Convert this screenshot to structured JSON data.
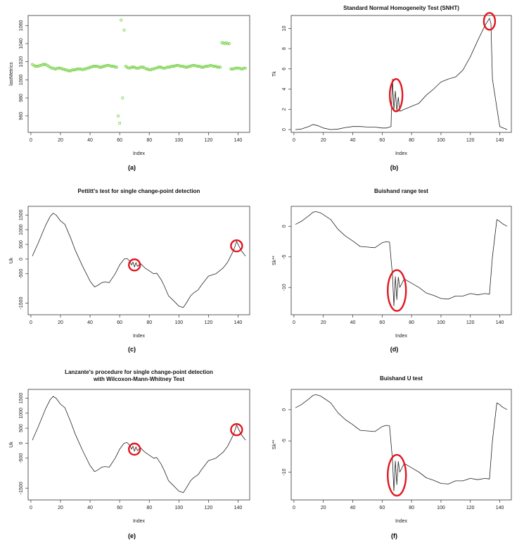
{
  "chart_data": [
    {
      "panel": "a",
      "type": "scatter",
      "caption": "(a)",
      "title": "",
      "xlabel": "Index",
      "ylabel": "lastMetrics",
      "xlim": [
        1,
        145
      ],
      "ylim": [
        945,
        1068
      ],
      "xticks": [
        0,
        20,
        40,
        60,
        80,
        100,
        120,
        140
      ],
      "yticks": [
        960,
        980,
        1000,
        1020,
        1040,
        1060
      ],
      "point_color": "#66cc33",
      "series": [
        {
          "x": [
            1,
            2,
            3,
            4,
            5,
            6,
            7,
            8,
            9,
            10,
            11,
            12,
            13,
            14,
            15,
            16,
            17,
            18,
            19,
            20,
            21,
            22,
            23,
            24,
            25,
            26,
            27,
            28,
            29,
            30,
            31,
            32,
            33,
            34,
            35,
            36,
            37,
            38,
            39,
            40,
            41,
            42,
            43,
            44,
            45,
            46,
            47,
            48,
            49,
            50,
            51,
            52,
            53,
            54,
            55,
            56,
            57,
            58,
            59,
            60,
            61,
            62,
            63,
            64,
            65,
            66,
            67,
            68,
            69,
            70,
            71,
            72,
            73,
            74,
            75,
            76,
            77,
            78,
            79,
            80,
            81,
            82,
            83,
            84,
            85,
            86,
            87,
            88,
            89,
            90,
            91,
            92,
            93,
            94,
            95,
            96,
            97,
            98,
            99,
            100,
            101,
            102,
            103,
            104,
            105,
            106,
            107,
            108,
            109,
            110,
            111,
            112,
            113,
            114,
            115,
            116,
            117,
            118,
            119,
            120,
            121,
            122,
            123,
            124,
            125,
            126,
            127,
            128,
            129,
            130,
            131,
            132,
            133,
            134,
            135,
            136,
            137,
            138,
            139,
            140,
            141,
            142,
            143,
            144,
            145
          ],
          "y": [
            1017,
            1016,
            1015,
            1015,
            1015,
            1016,
            1016,
            1017,
            1017,
            1017,
            1016,
            1015,
            1014,
            1013,
            1013,
            1012,
            1012,
            1013,
            1013,
            1013,
            1012,
            1012,
            1011,
            1011,
            1010,
            1010,
            1010,
            1011,
            1011,
            1011,
            1012,
            1012,
            1012,
            1012,
            1011,
            1012,
            1012,
            1013,
            1013,
            1014,
            1014,
            1015,
            1015,
            1015,
            1015,
            1014,
            1014,
            1014,
            1015,
            1015,
            1016,
            1016,
            1016,
            1015,
            1015,
            1015,
            1014,
            1014,
            960,
            952,
            1066,
            980,
            1055,
            1015,
            1014,
            1013,
            1013,
            1014,
            1014,
            1014,
            1013,
            1013,
            1013,
            1014,
            1014,
            1014,
            1013,
            1012,
            1012,
            1011,
            1011,
            1012,
            1012,
            1013,
            1013,
            1014,
            1014,
            1014,
            1013,
            1013,
            1013,
            1014,
            1014,
            1014,
            1015,
            1015,
            1015,
            1016,
            1016,
            1016,
            1015,
            1015,
            1015,
            1014,
            1014,
            1014,
            1015,
            1015,
            1016,
            1016,
            1016,
            1015,
            1015,
            1015,
            1014,
            1014,
            1014,
            1015,
            1015,
            1015,
            1016,
            1016,
            1015,
            1015,
            1015,
            1014,
            1014,
            1014,
            1041,
            1041,
            1040,
            1041,
            1040,
            1040,
            1012,
            1012,
            1012,
            1013,
            1013,
            1013,
            1013,
            1012,
            1012,
            1013,
            1013
          ]
        }
      ]
    },
    {
      "panel": "b",
      "type": "line",
      "caption": "(b)",
      "title": "Standard Normal Homogeneity Test (SNHT)",
      "xlabel": "Index",
      "ylabel": "Tk",
      "xlim": [
        1,
        145
      ],
      "ylim": [
        0,
        11
      ],
      "xticks": [
        0,
        20,
        40,
        60,
        80,
        100,
        120,
        140
      ],
      "yticks": [
        0,
        2,
        4,
        6,
        8,
        10
      ],
      "series": [
        {
          "x": [
            1,
            5,
            10,
            13,
            16,
            20,
            25,
            30,
            35,
            40,
            45,
            50,
            55,
            60,
            63,
            66,
            67,
            68,
            69,
            70,
            71,
            72,
            75,
            80,
            85,
            90,
            95,
            100,
            105,
            110,
            115,
            120,
            125,
            130,
            133,
            134,
            135,
            140,
            145
          ],
          "y": [
            0,
            0.05,
            0.3,
            0.5,
            0.4,
            0.15,
            0,
            0.05,
            0.2,
            0.3,
            0.3,
            0.25,
            0.25,
            0.15,
            0.15,
            0.3,
            5.0,
            2.0,
            3.8,
            1.9,
            3.2,
            1.8,
            2.0,
            2.3,
            2.6,
            3.4,
            4.0,
            4.7,
            5.0,
            5.2,
            5.9,
            7.2,
            8.8,
            10.3,
            11.0,
            10.5,
            5.0,
            0.3,
            0
          ]
        }
      ],
      "highlights": [
        {
          "x": 69.5,
          "y": 3.4
        },
        {
          "x": 133,
          "y": 10.7
        }
      ]
    },
    {
      "panel": "c",
      "type": "line",
      "caption": "(c)",
      "title": "Pettitt's test for single change-point detection",
      "xlabel": "Index",
      "ylabel": "Uk",
      "xlim": [
        1,
        145
      ],
      "ylim": [
        -1800,
        1700
      ],
      "xticks": [
        0,
        20,
        40,
        60,
        80,
        100,
        120,
        140
      ],
      "yticks": [
        -1500,
        -500,
        0,
        500,
        1000,
        1500
      ],
      "series": [
        {
          "x": [
            1,
            5,
            10,
            13,
            15,
            17,
            20,
            23,
            27,
            30,
            35,
            40,
            43,
            45,
            48,
            50,
            53,
            57,
            60,
            63,
            65,
            67,
            68,
            69,
            70,
            71,
            72,
            74,
            77,
            80,
            83,
            85,
            88,
            90,
            93,
            95,
            100,
            103,
            105,
            108,
            110,
            113,
            115,
            120,
            125,
            130,
            133,
            135,
            137,
            139,
            140,
            142,
            145
          ],
          "y": [
            100,
            550,
            1150,
            1450,
            1560,
            1500,
            1300,
            1180,
            700,
            300,
            -250,
            -750,
            -950,
            -900,
            -800,
            -780,
            -800,
            -500,
            -200,
            0,
            20,
            -80,
            -200,
            -100,
            -270,
            -120,
            -250,
            -150,
            -300,
            -400,
            -500,
            -480,
            -700,
            -900,
            -1250,
            -1350,
            -1600,
            -1650,
            -1500,
            -1250,
            -1150,
            -1050,
            -900,
            -580,
            -500,
            -300,
            -100,
            100,
            300,
            600,
            500,
            300,
            100
          ]
        }
      ],
      "highlights": [
        {
          "x": 70,
          "y": -200
        },
        {
          "x": 139,
          "y": 450
        }
      ]
    },
    {
      "panel": "d",
      "type": "line",
      "caption": "(d)",
      "title": "Buishand range test",
      "xlabel": "Index",
      "ylabel": "Sk**",
      "xlim": [
        1,
        145
      ],
      "ylim": [
        -14,
        2.8
      ],
      "xticks": [
        0,
        20,
        40,
        60,
        80,
        100,
        120,
        140
      ],
      "yticks": [
        -10,
        -5,
        0
      ],
      "series": [
        {
          "x": [
            1,
            5,
            10,
            13,
            15,
            18,
            20,
            25,
            30,
            35,
            40,
            45,
            50,
            55,
            60,
            63,
            65,
            67,
            68,
            69,
            70,
            71,
            72,
            75,
            80,
            85,
            90,
            95,
            100,
            105,
            110,
            115,
            120,
            125,
            130,
            133,
            135,
            138,
            140,
            142,
            145
          ],
          "y": [
            0.3,
            0.8,
            1.7,
            2.3,
            2.4,
            2.2,
            1.9,
            1.1,
            -0.5,
            -1.6,
            -2.4,
            -3.3,
            -3.4,
            -3.5,
            -2.7,
            -2.5,
            -2.6,
            -8.0,
            -13.0,
            -8.2,
            -12.0,
            -8.3,
            -10.0,
            -8.6,
            -9.3,
            -10.0,
            -10.9,
            -11.3,
            -11.8,
            -11.9,
            -11.4,
            -11.4,
            -11.0,
            -11.2,
            -11.0,
            -11.1,
            -5.0,
            1.1,
            0.8,
            0.4,
            0
          ]
        }
      ],
      "highlights": [
        {
          "x": 70,
          "y": -10.5
        }
      ]
    },
    {
      "panel": "e",
      "type": "line",
      "caption": "(e)",
      "title": "Lanzante's procedure for single change-point detection\nwith Wilcoxon-Mann-Whitney Test",
      "xlabel": "Index",
      "ylabel": "Uk",
      "xlim": [
        1,
        145
      ],
      "ylim": [
        -1800,
        1700
      ],
      "xticks": [
        0,
        20,
        40,
        60,
        80,
        100,
        120,
        140
      ],
      "yticks": [
        -1500,
        -500,
        0,
        500,
        1000,
        1500
      ],
      "series": [
        {
          "x": [
            1,
            5,
            10,
            13,
            15,
            17,
            20,
            23,
            27,
            30,
            35,
            40,
            43,
            45,
            48,
            50,
            53,
            57,
            60,
            63,
            65,
            67,
            68,
            69,
            70,
            71,
            72,
            74,
            77,
            80,
            83,
            85,
            88,
            90,
            93,
            95,
            100,
            103,
            105,
            108,
            110,
            113,
            115,
            120,
            125,
            130,
            133,
            135,
            137,
            139,
            140,
            142,
            145
          ],
          "y": [
            100,
            550,
            1150,
            1450,
            1560,
            1500,
            1300,
            1180,
            700,
            300,
            -250,
            -750,
            -950,
            -900,
            -800,
            -780,
            -800,
            -500,
            -200,
            0,
            20,
            -80,
            -200,
            -100,
            -270,
            -120,
            -250,
            -150,
            -300,
            -400,
            -500,
            -480,
            -700,
            -900,
            -1250,
            -1350,
            -1600,
            -1650,
            -1500,
            -1250,
            -1150,
            -1050,
            -900,
            -580,
            -500,
            -300,
            -100,
            100,
            300,
            600,
            500,
            300,
            100
          ]
        }
      ],
      "highlights": [
        {
          "x": 70,
          "y": -200
        },
        {
          "x": 139,
          "y": 450
        }
      ]
    },
    {
      "panel": "f",
      "type": "line",
      "caption": "(f)",
      "title": "Buishand U test",
      "xlabel": "Index",
      "ylabel": "Sk**",
      "xlim": [
        1,
        145
      ],
      "ylim": [
        -14,
        2.8
      ],
      "xticks": [
        0,
        20,
        40,
        60,
        80,
        100,
        120,
        140
      ],
      "yticks": [
        -10,
        -5,
        0
      ],
      "series": [
        {
          "x": [
            1,
            5,
            10,
            13,
            15,
            18,
            20,
            25,
            30,
            35,
            40,
            45,
            50,
            55,
            60,
            63,
            65,
            67,
            68,
            69,
            70,
            71,
            72,
            75,
            80,
            85,
            90,
            95,
            100,
            105,
            110,
            115,
            120,
            125,
            130,
            133,
            135,
            138,
            140,
            142,
            145
          ],
          "y": [
            0.3,
            0.8,
            1.7,
            2.3,
            2.4,
            2.2,
            1.9,
            1.1,
            -0.5,
            -1.6,
            -2.4,
            -3.3,
            -3.4,
            -3.5,
            -2.7,
            -2.5,
            -2.6,
            -8.0,
            -13.0,
            -8.2,
            -12.0,
            -8.3,
            -10.0,
            -8.6,
            -9.3,
            -10.0,
            -10.9,
            -11.3,
            -11.8,
            -11.9,
            -11.4,
            -11.4,
            -11.0,
            -11.2,
            -11.0,
            -11.1,
            -5.0,
            1.1,
            0.8,
            0.4,
            0
          ]
        }
      ],
      "highlights": [
        {
          "x": 70,
          "y": -10.5
        }
      ]
    }
  ],
  "colors": {
    "line": "#222222",
    "highlight": "#e3161e",
    "axis": "#333333"
  }
}
